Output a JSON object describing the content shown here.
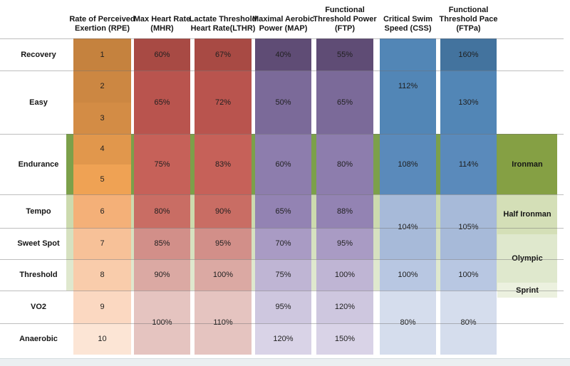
{
  "chart_data": {
    "type": "table",
    "description": "Training intensity zones table",
    "zone_rows": [
      {
        "label": "Recovery",
        "rows": [
          1,
          1
        ]
      },
      {
        "label": "Easy",
        "rows": [
          2,
          3
        ]
      },
      {
        "label": "Endurance",
        "rows": [
          4,
          5
        ]
      },
      {
        "label": "Tempo",
        "rows": [
          6,
          6
        ]
      },
      {
        "label": "Sweet Spot",
        "rows": [
          7,
          7
        ]
      },
      {
        "label": "Threshold",
        "rows": [
          8,
          8
        ]
      },
      {
        "label": "VO2",
        "rows": [
          9,
          9
        ]
      },
      {
        "label": "Anaerobic",
        "rows": [
          10,
          10
        ]
      }
    ],
    "columns": [
      {
        "id": "rpe",
        "header_lines": [
          "Rate of Perceived",
          "Exertion (RPE)"
        ],
        "cells": [
          [
            "1",
            1,
            1,
            "#c5823e"
          ],
          [
            "2",
            2,
            2,
            "#cc8742"
          ],
          [
            "3",
            3,
            3,
            "#d38c45"
          ],
          [
            "4",
            4,
            4,
            "#e1974c"
          ],
          [
            "5",
            5,
            5,
            "#efa254"
          ],
          [
            "6",
            6,
            6,
            "#f4b078"
          ],
          [
            "7",
            7,
            7,
            "#f7c198"
          ],
          [
            "8",
            8,
            8,
            "#f9ccab"
          ],
          [
            "9",
            9,
            9,
            "#fbd8c1"
          ],
          [
            "10",
            10,
            10,
            "#fce5d5"
          ]
        ]
      },
      {
        "id": "mhr",
        "header_lines": [
          "Max Heart Rate",
          "(MHR)"
        ],
        "cells": [
          [
            "60%",
            1,
            1,
            "#a84a44"
          ],
          [
            "65%",
            2,
            3,
            "#b9544e"
          ],
          [
            "75%",
            4,
            5,
            "#c66159"
          ],
          [
            "80%",
            6,
            6,
            "#c96d64"
          ],
          [
            "85%",
            7,
            7,
            "#d28f89"
          ],
          [
            "90%",
            8,
            8,
            "#dba9a3"
          ],
          [
            "100%",
            9,
            10,
            "#e5c4c0"
          ]
        ]
      },
      {
        "id": "lthr",
        "header_lines": [
          "Lactate Threshold",
          "Heart Rate(LTHR)"
        ],
        "cells": [
          [
            "67%",
            1,
            1,
            "#a84a44"
          ],
          [
            "72%",
            2,
            3,
            "#b9544e"
          ],
          [
            "83%",
            4,
            5,
            "#c66159"
          ],
          [
            "90%",
            6,
            6,
            "#c96d64"
          ],
          [
            "95%",
            7,
            7,
            "#d28f89"
          ],
          [
            "100%",
            8,
            8,
            "#dba9a3"
          ],
          [
            "110%",
            9,
            10,
            "#e5c4c0"
          ]
        ]
      },
      {
        "id": "map",
        "header_lines": [
          "Maximal Aerobic",
          "Power (MAP)"
        ],
        "cells": [
          [
            "40%",
            1,
            1,
            "#5f4c75"
          ],
          [
            "50%",
            2,
            3,
            "#7b6a99"
          ],
          [
            "60%",
            4,
            5,
            "#8d7dad"
          ],
          [
            "65%",
            6,
            6,
            "#9383b3"
          ],
          [
            "70%",
            7,
            7,
            "#a99bc4"
          ],
          [
            "75%",
            8,
            8,
            "#bfb5d4"
          ],
          [
            "95%",
            9,
            9,
            "#cec7df"
          ],
          [
            "120%",
            10,
            10,
            "#d9d3e7"
          ]
        ]
      },
      {
        "id": "ftp",
        "header_lines": [
          "Functional",
          "Threshold Power",
          "(FTP)"
        ],
        "cells": [
          [
            "55%",
            1,
            1,
            "#5f4c75"
          ],
          [
            "65%",
            2,
            3,
            "#7b6a99"
          ],
          [
            "80%",
            4,
            5,
            "#8d7dad"
          ],
          [
            "88%",
            6,
            6,
            "#9383b3"
          ],
          [
            "95%",
            7,
            7,
            "#a99bc4"
          ],
          [
            "100%",
            8,
            8,
            "#bfb5d4"
          ],
          [
            "120%",
            9,
            9,
            "#cec7df"
          ],
          [
            "150%",
            10,
            10,
            "#d9d3e7"
          ]
        ]
      },
      {
        "id": "css",
        "header_lines": [
          "Critical Swim",
          "Speed (CSS)"
        ],
        "cells": [
          [
            "112%",
            1,
            3,
            "#5286b6"
          ],
          [
            "108%",
            4,
            5,
            "#5a8abb"
          ],
          [
            "104%",
            6,
            7,
            "#a7bad9"
          ],
          [
            "100%",
            8,
            8,
            "#b8c7e2"
          ],
          [
            "80%",
            9,
            10,
            "#d5dded"
          ]
        ]
      },
      {
        "id": "ftpa",
        "header_lines": [
          "Functional",
          "Threshold Pace",
          "(FTPa)"
        ],
        "cells": [
          [
            "160%",
            1,
            1,
            "#43739e"
          ],
          [
            "130%",
            2,
            3,
            "#5286b6"
          ],
          [
            "114%",
            4,
            5,
            "#5a8abb"
          ],
          [
            "105%",
            6,
            7,
            "#a7bad9"
          ],
          [
            "100%",
            8,
            8,
            "#b8c7e2"
          ],
          [
            "80%",
            9,
            10,
            "#d5dded"
          ]
        ]
      }
    ],
    "race_bands": [
      {
        "label": "Ironman",
        "color": "#85a044"
      },
      {
        "label": "Half Ironman",
        "color": "#d4dfb7"
      },
      {
        "label": "Olympic",
        "color": "#dfe8cd"
      },
      {
        "label": "Sprint",
        "color": "#ecf1df"
      }
    ],
    "gap_bands": [
      {
        "rows": [
          4,
          5
        ],
        "color": "#7ca04a"
      },
      {
        "rows": [
          6,
          6
        ],
        "color": "#ccdaae"
      },
      {
        "rows": [
          7,
          7
        ],
        "color": "#d6e1c0"
      },
      {
        "rows": [
          8,
          8
        ],
        "color": "#dfe8ce"
      }
    ]
  }
}
